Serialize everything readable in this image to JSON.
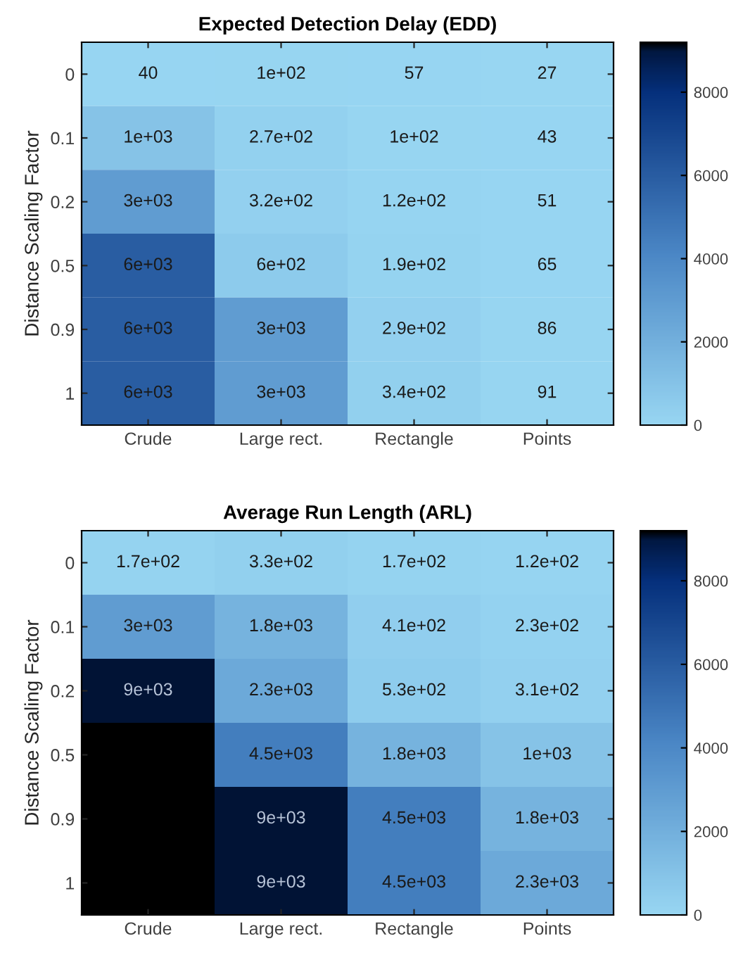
{
  "chart_data": [
    {
      "type": "heatmap",
      "title": "Expected Detection Delay (EDD)",
      "ylabel": "Distance Scaling Factor",
      "categories": [
        "Crude",
        "Large rect.",
        "Rectangle",
        "Points"
      ],
      "y_categories": [
        "0",
        "0.1",
        "0.2",
        "0.5",
        "0.9",
        "1"
      ],
      "cells": [
        [
          40,
          100,
          57,
          27
        ],
        [
          1000,
          270,
          100,
          43
        ],
        [
          3000,
          320,
          120,
          51
        ],
        [
          6000,
          600,
          190,
          65
        ],
        [
          6000,
          3000,
          290,
          86
        ],
        [
          6000,
          3000,
          340,
          91
        ]
      ],
      "cell_labels": [
        [
          "40",
          "1e+02",
          "57",
          "27"
        ],
        [
          "1e+03",
          "2.7e+02",
          "1e+02",
          "43"
        ],
        [
          "3e+03",
          "3.2e+02",
          "1.2e+02",
          "51"
        ],
        [
          "6e+03",
          "6e+02",
          "1.9e+02",
          "65"
        ],
        [
          "6e+03",
          "3e+03",
          "2.9e+02",
          "86"
        ],
        [
          "6e+03",
          "3e+03",
          "3.4e+02",
          "91"
        ]
      ],
      "clim": [
        0,
        9200
      ],
      "cticks": [
        0,
        2000,
        4000,
        6000,
        8000
      ]
    },
    {
      "type": "heatmap",
      "title": "Average Run Length (ARL)",
      "ylabel": "Distance Scaling Factor",
      "categories": [
        "Crude",
        "Large rect.",
        "Rectangle",
        "Points"
      ],
      "y_categories": [
        "0",
        "0.1",
        "0.2",
        "0.5",
        "0.9",
        "1"
      ],
      "cells": [
        [
          170,
          330,
          170,
          120
        ],
        [
          3000,
          1800,
          410,
          230
        ],
        [
          9000,
          2300,
          530,
          310
        ],
        [
          9200,
          4500,
          1800,
          1000
        ],
        [
          9200,
          9000,
          4500,
          1800
        ],
        [
          9200,
          9000,
          4500,
          2300
        ]
      ],
      "cell_labels": [
        [
          "1.7e+02",
          "3.3e+02",
          "1.7e+02",
          "1.2e+02"
        ],
        [
          "3e+03",
          "1.8e+03",
          "4.1e+02",
          "2.3e+02"
        ],
        [
          "9e+03",
          "2.3e+03",
          "5.3e+02",
          "3.1e+02"
        ],
        [
          null,
          "4.5e+03",
          "1.8e+03",
          "1e+03"
        ],
        [
          null,
          "9e+03",
          "4.5e+03",
          "1.8e+03"
        ],
        [
          null,
          "9e+03",
          "4.5e+03",
          "2.3e+03"
        ]
      ],
      "clim": [
        0,
        9200
      ],
      "cticks": [
        0,
        2000,
        4000,
        6000,
        8000
      ]
    }
  ]
}
